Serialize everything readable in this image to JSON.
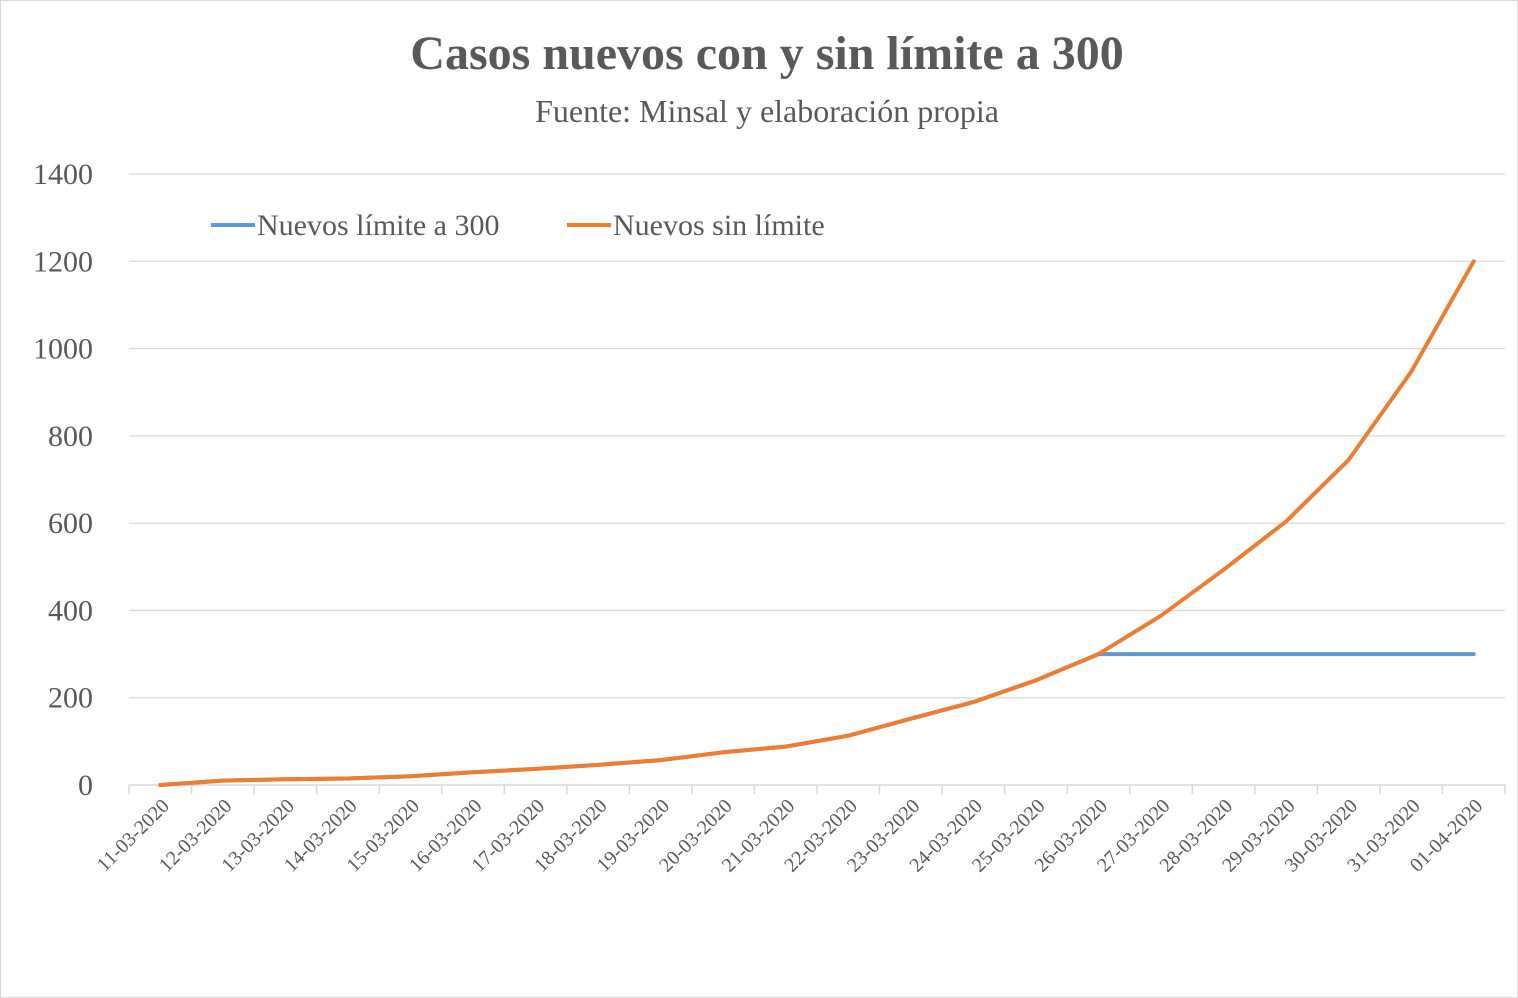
{
  "chart_data": {
    "type": "line",
    "title": "Casos nuevos con y sin límite a 300",
    "subtitle": "Fuente: Minsal y elaboración propia",
    "xlabel": "",
    "ylabel": "",
    "ylim": [
      0,
      1400
    ],
    "yticks": [
      "0",
      "200",
      "400",
      "600",
      "800",
      "1000",
      "1200",
      "1400"
    ],
    "grid": true,
    "legend_position": "top-left",
    "categories": [
      "11-03-2020",
      "12-03-2020",
      "13-03-2020",
      "14-03-2020",
      "15-03-2020",
      "16-03-2020",
      "17-03-2020",
      "18-03-2020",
      "19-03-2020",
      "20-03-2020",
      "21-03-2020",
      "22-03-2020",
      "23-03-2020",
      "24-03-2020",
      "25-03-2020",
      "26-03-2020",
      "27-03-2020",
      "28-03-2020",
      "29-03-2020",
      "30-03-2020",
      "31-03-2020",
      "01-04-2020"
    ],
    "series": [
      {
        "name": "Nuevos límite a 300",
        "color": "#5b9bd5",
        "values": [
          0,
          10,
          13,
          15,
          20,
          29,
          37,
          46,
          57,
          75,
          88,
          113,
          152,
          190,
          240,
          300,
          300,
          300,
          300,
          300,
          300,
          300
        ]
      },
      {
        "name": "Nuevos sin límite",
        "color": "#ed7d31",
        "values": [
          0,
          10,
          13,
          15,
          20,
          29,
          37,
          46,
          57,
          75,
          88,
          113,
          152,
          190,
          240,
          300,
          388,
          493,
          604,
          745,
          947,
          1200
        ]
      }
    ]
  }
}
